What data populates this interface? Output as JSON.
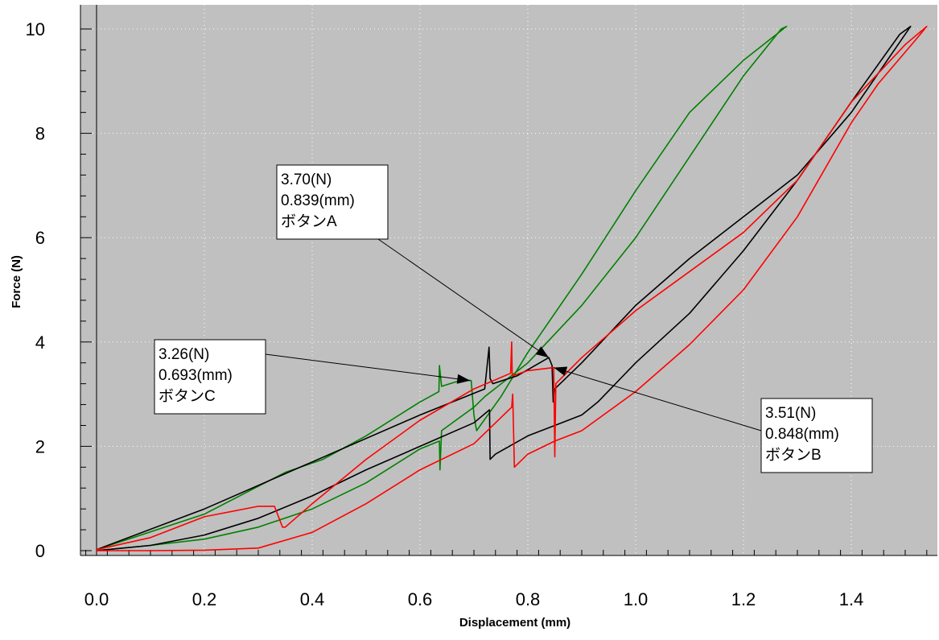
{
  "chart_data": {
    "type": "line",
    "title": "",
    "xlabel": "Displacement (mm)",
    "ylabel": "Force (N)",
    "xlim": [
      -0.03,
      1.55
    ],
    "ylim": [
      -0.05,
      10.5
    ],
    "xticks": [
      "0.0",
      "0.2",
      "0.4",
      "0.6",
      "0.8",
      "1.0",
      "1.2",
      "1.4"
    ],
    "yticks": [
      "0",
      "2",
      "4",
      "6",
      "8",
      "10"
    ],
    "grid": true,
    "background": "#c0c0c0",
    "series": [
      {
        "color": "#008000",
        "x": [
          0.0,
          0.2,
          0.35,
          0.42,
          0.5,
          0.6,
          0.635,
          0.636,
          0.64,
          0.68,
          0.695,
          0.7,
          0.705,
          0.75,
          0.8,
          0.9,
          1.0,
          1.1,
          1.2,
          1.28,
          1.27,
          1.2,
          1.1,
          1.0,
          0.9,
          0.8,
          0.72,
          0.7,
          0.68,
          0.64,
          0.637,
          0.636,
          0.6,
          0.5,
          0.4,
          0.3,
          0.2,
          0.1,
          0.0
        ],
        "y": [
          0.02,
          0.7,
          1.5,
          1.75,
          2.2,
          2.85,
          3.05,
          3.55,
          3.15,
          3.28,
          3.26,
          2.6,
          2.3,
          2.95,
          3.8,
          5.3,
          6.9,
          8.4,
          9.4,
          10.05,
          10.0,
          9.1,
          7.55,
          6.0,
          4.7,
          3.6,
          2.95,
          2.75,
          2.6,
          2.3,
          1.55,
          2.1,
          1.95,
          1.3,
          0.8,
          0.45,
          0.22,
          0.1,
          0.0
        ]
      },
      {
        "color": "#000000",
        "x": [
          0.0,
          0.2,
          0.4,
          0.6,
          0.72,
          0.728,
          0.73,
          0.735,
          0.78,
          0.839,
          0.845,
          0.847,
          0.85,
          0.9,
          1.0,
          1.1,
          1.2,
          1.3,
          1.4,
          1.51,
          1.49,
          1.4,
          1.3,
          1.2,
          1.1,
          1.0,
          0.93,
          0.9,
          0.85,
          0.8,
          0.74,
          0.73,
          0.729,
          0.7,
          0.6,
          0.5,
          0.4,
          0.3,
          0.2,
          0.1,
          0.0
        ],
        "y": [
          0.02,
          0.8,
          1.7,
          2.6,
          3.1,
          3.9,
          3.3,
          3.2,
          3.35,
          3.7,
          3.55,
          2.85,
          3.1,
          3.6,
          4.7,
          5.6,
          6.4,
          7.2,
          8.4,
          10.05,
          9.9,
          8.6,
          7.1,
          5.75,
          4.55,
          3.6,
          2.85,
          2.6,
          2.4,
          2.2,
          1.85,
          1.75,
          2.7,
          2.45,
          2.0,
          1.55,
          1.05,
          0.62,
          0.3,
          0.1,
          0.0
        ]
      },
      {
        "color": "#ff0000",
        "x": [
          0.0,
          0.1,
          0.2,
          0.3,
          0.33,
          0.345,
          0.35,
          0.4,
          0.5,
          0.6,
          0.7,
          0.768,
          0.77,
          0.771,
          0.8,
          0.848,
          0.85,
          0.852,
          0.9,
          1.0,
          1.1,
          1.2,
          1.3,
          1.4,
          1.5,
          1.54,
          1.52,
          1.45,
          1.4,
          1.3,
          1.2,
          1.1,
          1.0,
          0.9,
          0.85,
          0.8,
          0.775,
          0.772,
          0.77,
          0.7,
          0.6,
          0.5,
          0.4,
          0.3,
          0.2,
          0.1,
          0.0
        ],
        "y": [
          0.02,
          0.25,
          0.65,
          0.85,
          0.85,
          0.45,
          0.45,
          0.9,
          1.75,
          2.5,
          3.1,
          3.4,
          4.0,
          3.35,
          3.45,
          3.51,
          1.8,
          3.2,
          3.7,
          4.6,
          5.35,
          6.1,
          7.1,
          8.6,
          9.7,
          10.05,
          9.8,
          8.95,
          8.2,
          6.4,
          5.0,
          3.95,
          3.05,
          2.3,
          2.1,
          1.85,
          1.6,
          3.0,
          2.75,
          2.05,
          1.55,
          0.9,
          0.35,
          0.05,
          0.01,
          0.0,
          0.0
        ]
      }
    ],
    "annotations": [
      {
        "lines": [
          "3.70(N)",
          "0.839(mm)",
          "ボタンA"
        ],
        "point": [
          0.839,
          3.7
        ]
      },
      {
        "lines": [
          "3.26(N)",
          "0.693(mm)",
          "ボタンC"
        ],
        "point": [
          0.693,
          3.26
        ]
      },
      {
        "lines": [
          "3.51(N)",
          "0.848(mm)",
          "ボタンB"
        ],
        "point": [
          0.848,
          3.51
        ]
      }
    ]
  }
}
